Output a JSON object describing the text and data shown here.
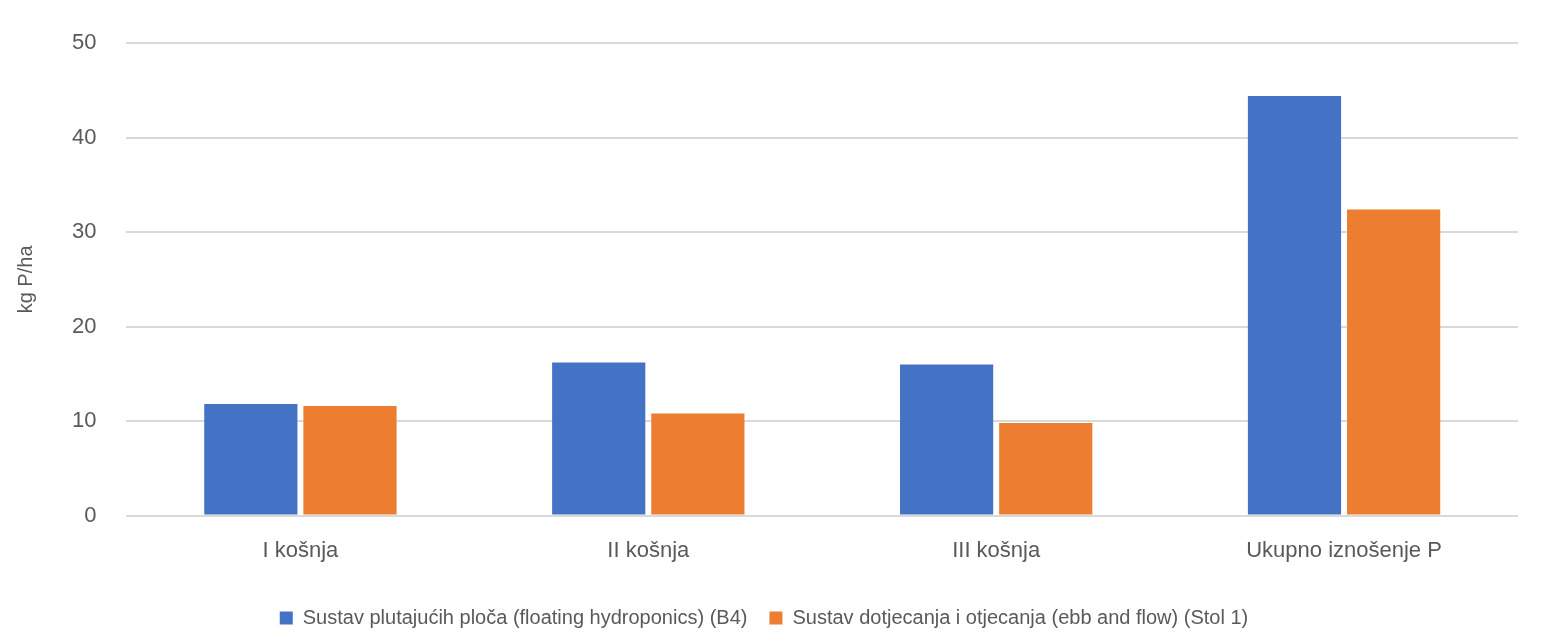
{
  "chart_data": {
    "type": "bar",
    "ylabel": "kg P/ha",
    "categories": [
      "I košnja",
      "II košnja",
      "III košnja",
      "Ukupno iznošenje P"
    ],
    "series": [
      {
        "name": "Sustav plutajućih ploča (floating hydroponics) (B4)",
        "color": "#4472c4",
        "values": [
          11.8,
          16.2,
          16.0,
          44.4
        ]
      },
      {
        "name": "Sustav dotjecanja i otjecanja (ebb and flow) (Stol 1)",
        "color": "#ed7d31",
        "values": [
          11.6,
          10.8,
          9.8,
          32.4
        ]
      }
    ],
    "ylim": [
      0,
      50
    ],
    "yticks": [
      0,
      10,
      20,
      30,
      40,
      50
    ],
    "grid": "y",
    "legend": "bottom"
  }
}
